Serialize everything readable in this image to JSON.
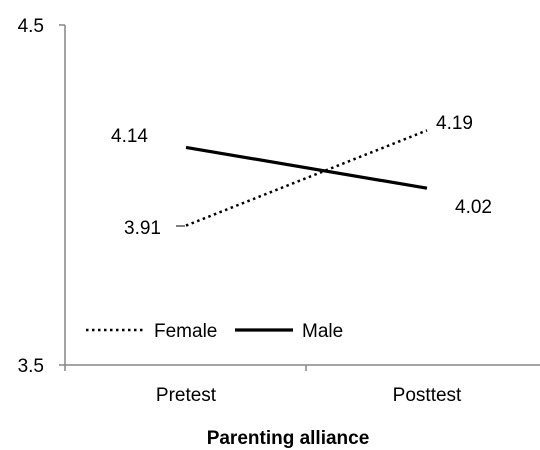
{
  "chart_data": {
    "type": "line",
    "title": "",
    "xlabel": "Parenting alliance",
    "ylabel": "",
    "categories": [
      "Pretest",
      "Posttest"
    ],
    "ylim": [
      3.5,
      4.5
    ],
    "yticks": [
      "3.5",
      "4.5"
    ],
    "grid": false,
    "legend": "bottom-left",
    "series": [
      {
        "name": "Female",
        "values": [
          3.91,
          4.19
        ],
        "labels": [
          "3.91",
          "4.19"
        ],
        "style": "dotted",
        "color": "#000000"
      },
      {
        "name": "Male",
        "values": [
          4.14,
          4.02
        ],
        "labels": [
          "4.14",
          "4.02"
        ],
        "style": "solid",
        "color": "#000000"
      }
    ]
  }
}
